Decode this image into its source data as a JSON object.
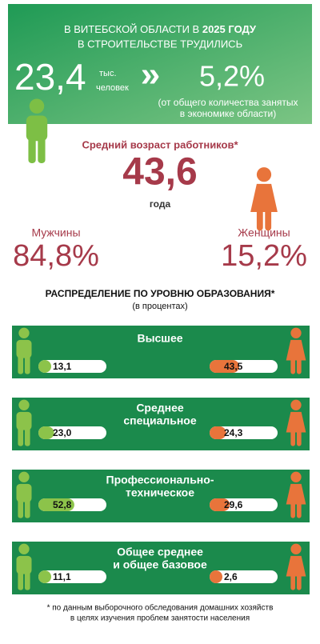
{
  "header": {
    "title": [
      "В ВИТЕБСКОЙ ОБЛАСТИ В",
      "2025 ГОДУ",
      "В СТРОИТЕЛЬСТВЕ ТРУДИЛИСЬ"
    ],
    "workers": {
      "value": "23,4",
      "unit": [
        "тыс.",
        "человек"
      ]
    },
    "arrow": "»",
    "share": {
      "value": "5,2%",
      "note": [
        "(от общего количества занятых",
        "в экономике области)"
      ]
    }
  },
  "age": {
    "label": "Средний возраст работников*",
    "value": "43,6",
    "unit": "года"
  },
  "gender": {
    "men": {
      "label": "Мужчины",
      "value": "84,8%"
    },
    "women": {
      "label": "Женщины",
      "value": "15,2%"
    }
  },
  "education": {
    "title": "РАСПРЕДЕЛЕНИЕ ПО УРОВНЮ ОБРАЗОВАНИЯ*",
    "subtitle": "(в процентах)",
    "levels": [
      {
        "name": [
          "Высшее"
        ],
        "men": {
          "value": 13.1,
          "label": "13,1"
        },
        "women": {
          "value": 43.5,
          "label": "43,5"
        }
      },
      {
        "name": [
          "Среднее",
          "специальное"
        ],
        "men": {
          "value": 23.0,
          "label": "23,0"
        },
        "women": {
          "value": 24.3,
          "label": "24,3"
        }
      },
      {
        "name": [
          "Профессионально-",
          "техническое"
        ],
        "men": {
          "value": 52.8,
          "label": "52,8"
        },
        "women": {
          "value": 29.6,
          "label": "29,6"
        }
      },
      {
        "name": [
          "Общее среднее",
          "и общее базовое"
        ],
        "men": {
          "value": 11.1,
          "label": "11,1"
        },
        "women": {
          "value": 2.6,
          "label": "2,6"
        }
      }
    ]
  },
  "footnote": [
    "* по данным выборочного обследования домашних хозяйств",
    "в целях изучения проблем занятости населения"
  ]
}
